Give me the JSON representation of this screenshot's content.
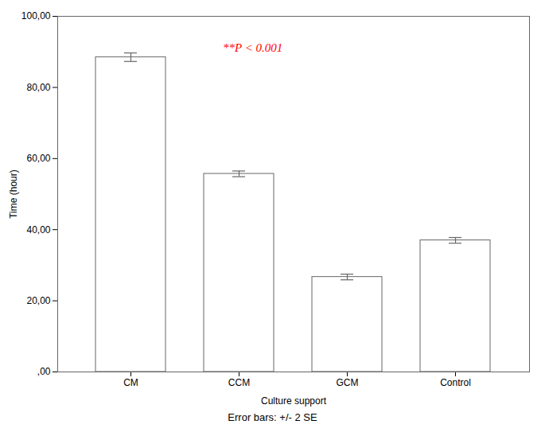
{
  "chart_data": {
    "type": "bar",
    "categories": [
      "CM",
      "CCM",
      "GCM",
      "Control"
    ],
    "values": [
      88.5,
      55.7,
      26.7,
      37.0
    ],
    "errors": [
      1.2,
      0.8,
      0.8,
      0.8
    ],
    "color": "#ffffff",
    "ylim": [
      0,
      100
    ],
    "yticks": [
      {
        "value": 0,
        "label": ",00"
      },
      {
        "value": 20,
        "label": "20,00"
      },
      {
        "value": 40,
        "label": "40,00"
      },
      {
        "value": 60,
        "label": "60,00"
      },
      {
        "value": 80,
        "label": "80,00"
      },
      {
        "value": 100,
        "label": "100,00"
      }
    ],
    "xlabel": "Culture support",
    "ylabel": "Time (hour)",
    "annotations": [
      {
        "text": "**P < 0.001",
        "color": "#ff0000"
      }
    ],
    "caption": "Error bars: +/- 2 SE",
    "grid": false
  }
}
